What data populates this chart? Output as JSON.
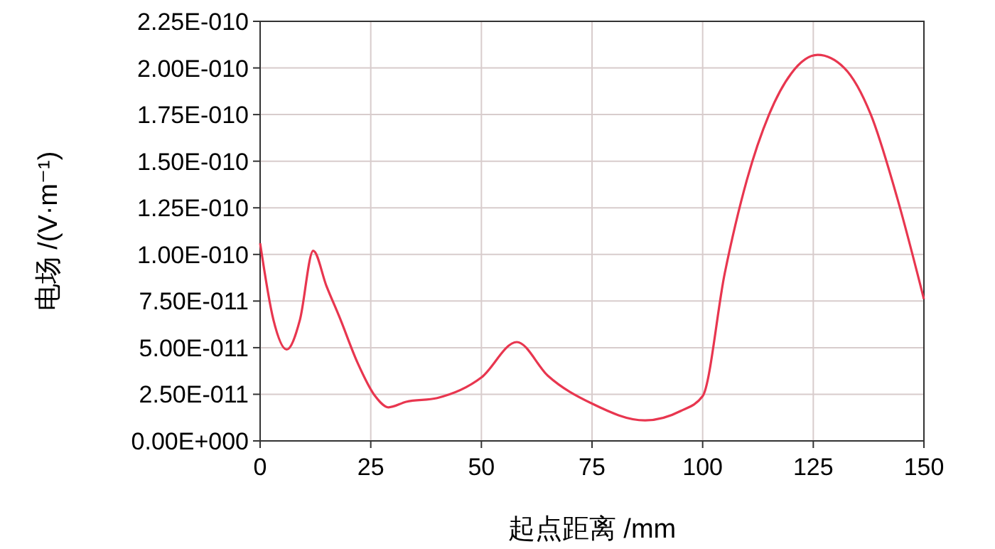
{
  "chart_data": {
    "type": "line",
    "xlabel": "起点距离 /mm",
    "ylabel": "电场 /(V·m⁻¹)",
    "x": [
      0,
      3,
      6,
      9,
      12,
      15,
      18,
      22,
      26,
      29,
      33,
      40,
      50,
      58,
      65,
      75,
      87,
      95,
      100,
      105,
      110,
      115,
      120,
      126,
      132,
      138,
      144,
      150
    ],
    "series": [
      {
        "color": "#e8364f",
        "values": [
          1.06e-10,
          6.5e-11,
          4.9e-11,
          6.5e-11,
          1.02e-10,
          8.3e-11,
          6.6e-11,
          4.2e-11,
          2.4e-11,
          1.8e-11,
          2.1e-11,
          2.3e-11,
          3.4e-11,
          5.3e-11,
          3.5e-11,
          2e-11,
          1.1e-11,
          1.6e-11,
          2.4e-11,
          9e-11,
          1.4e-10,
          1.75e-10,
          1.97e-10,
          2.07e-10,
          2e-10,
          1.75e-10,
          1.3e-10,
          7.6e-11
        ]
      }
    ],
    "xlim": [
      0,
      150
    ],
    "xticks": [
      0,
      25,
      50,
      75,
      100,
      125,
      150
    ],
    "ylim": [
      0,
      2.25e-10
    ],
    "yticks": [
      {
        "value": 0,
        "label": "0.00E+000"
      },
      {
        "value": 2.5e-11,
        "label": "2.50E-011"
      },
      {
        "value": 5e-11,
        "label": "5.00E-011"
      },
      {
        "value": 7.5e-11,
        "label": "7.50E-011"
      },
      {
        "value": 1e-10,
        "label": "1.00E-010"
      },
      {
        "value": 1.25e-10,
        "label": "1.25E-010"
      },
      {
        "value": 1.5e-10,
        "label": "1.50E-010"
      },
      {
        "value": 1.75e-10,
        "label": "1.75E-010"
      },
      {
        "value": 2e-10,
        "label": "2.00E-010"
      },
      {
        "value": 2.25e-10,
        "label": "2.25E-010"
      }
    ],
    "grid": true,
    "line_style": "solid"
  }
}
